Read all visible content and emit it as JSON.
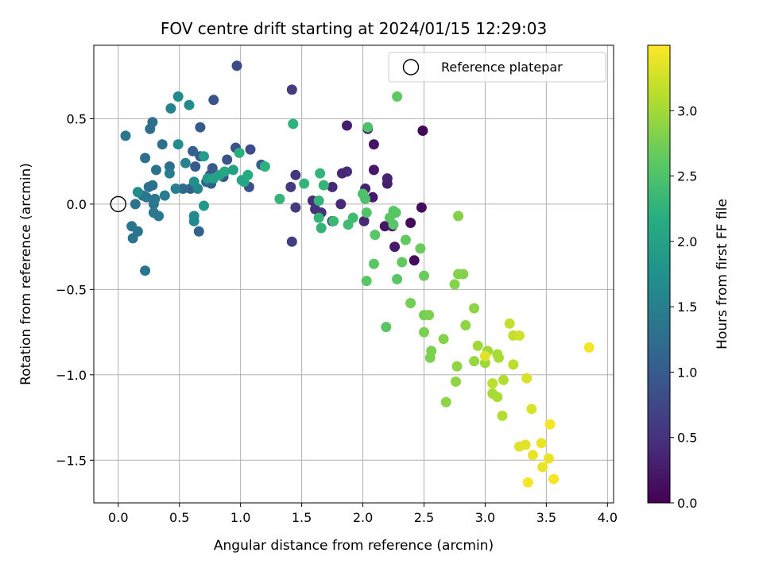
{
  "chart_data": {
    "type": "scatter",
    "title": "FOV centre drift starting at 2024/01/15 12:29:03",
    "xlabel": "Angular distance from reference (arcmin)",
    "ylabel": "Rotation from reference (arcmin)",
    "xlim": [
      -0.2,
      4.05
    ],
    "ylim": [
      -1.75,
      0.93
    ],
    "xticks": [
      0.0,
      0.5,
      1.0,
      1.5,
      2.0,
      2.5,
      3.0,
      3.5,
      4.0
    ],
    "xtick_labels": [
      "0.0",
      "0.5",
      "1.0",
      "1.5",
      "2.0",
      "2.5",
      "3.0",
      "3.5",
      "4.0"
    ],
    "yticks": [
      0.5,
      0.0,
      -0.5,
      -1.0,
      -1.5
    ],
    "ytick_labels": [
      "0.5",
      "0.0",
      "−0.5",
      "−1.0",
      "−1.5"
    ],
    "grid": true,
    "legend": {
      "placement": "top-right",
      "label": "Reference platepar"
    },
    "reference_point": {
      "x": 0.0,
      "y": 0.0
    },
    "colorbar": {
      "label": "Hours from first FF file",
      "colormap": "viridis",
      "range": [
        0.0,
        3.5
      ],
      "ticks": [
        0.0,
        0.5,
        1.0,
        1.5,
        2.0,
        2.5,
        3.0
      ],
      "tick_labels": [
        "0.0",
        "0.5",
        "1.0",
        "1.5",
        "2.0",
        "2.5",
        "3.0"
      ]
    },
    "series": [
      {
        "color_by": "hours",
        "points": [
          {
            "x": 2.49,
            "y": 0.43,
            "c": 0.05
          },
          {
            "x": 2.48,
            "y": -0.02,
            "c": 0.1
          },
          {
            "x": 2.42,
            "y": -0.33,
            "c": 0.1
          },
          {
            "x": 2.39,
            "y": -0.11,
            "c": 0.1
          },
          {
            "x": 2.26,
            "y": -0.25,
            "c": 0.25
          },
          {
            "x": 2.24,
            "y": -0.13,
            "c": 0.15
          },
          {
            "x": 2.2,
            "y": 0.12,
            "c": 0.3
          },
          {
            "x": 2.2,
            "y": 0.15,
            "c": 0.35
          },
          {
            "x": 2.18,
            "y": -0.13,
            "c": 0.2
          },
          {
            "x": 2.09,
            "y": 0.35,
            "c": 0.2
          },
          {
            "x": 2.09,
            "y": 0.2,
            "c": 0.25
          },
          {
            "x": 2.08,
            "y": 0.04,
            "c": 0.25
          },
          {
            "x": 2.04,
            "y": 0.44,
            "c": 0.25
          },
          {
            "x": 2.02,
            "y": 0.09,
            "c": 0.35
          },
          {
            "x": 2.01,
            "y": -0.1,
            "c": 0.4
          },
          {
            "x": 1.87,
            "y": 0.46,
            "c": 0.3
          },
          {
            "x": 1.87,
            "y": 0.19,
            "c": 0.45
          },
          {
            "x": 1.83,
            "y": 0.18,
            "c": 0.4
          },
          {
            "x": 1.82,
            "y": 0.0,
            "c": 0.4
          },
          {
            "x": 1.75,
            "y": 0.1,
            "c": 0.4
          },
          {
            "x": 1.75,
            "y": -0.1,
            "c": 0.4
          },
          {
            "x": 1.66,
            "y": -0.05,
            "c": 0.5
          },
          {
            "x": 1.61,
            "y": -0.03,
            "c": 0.5
          },
          {
            "x": 1.59,
            "y": 0.02,
            "c": 0.45
          },
          {
            "x": 1.45,
            "y": 0.17,
            "c": 0.55
          },
          {
            "x": 1.42,
            "y": 0.67,
            "c": 0.6
          },
          {
            "x": 1.41,
            "y": 0.1,
            "c": 0.6
          },
          {
            "x": 1.45,
            "y": -0.02,
            "c": 0.6
          },
          {
            "x": 1.42,
            "y": -0.22,
            "c": 0.65
          },
          {
            "x": 0.97,
            "y": 0.81,
            "c": 0.8
          },
          {
            "x": 1.08,
            "y": 0.32,
            "c": 0.8
          },
          {
            "x": 1.07,
            "y": 0.1,
            "c": 0.85
          },
          {
            "x": 0.96,
            "y": 0.33,
            "c": 0.9
          },
          {
            "x": 0.89,
            "y": 0.26,
            "c": 0.9
          },
          {
            "x": 0.86,
            "y": 0.16,
            "c": 0.9
          },
          {
            "x": 0.78,
            "y": 0.61,
            "c": 0.9
          },
          {
            "x": 0.67,
            "y": 0.45,
            "c": 1.0
          },
          {
            "x": 0.63,
            "y": 0.22,
            "c": 1.0
          },
          {
            "x": 0.67,
            "y": 0.28,
            "c": 1.0
          },
          {
            "x": 0.75,
            "y": 0.17,
            "c": 1.0
          },
          {
            "x": 0.77,
            "y": 0.21,
            "c": 1.0
          },
          {
            "x": 0.66,
            "y": -0.16,
            "c": 1.1
          },
          {
            "x": 0.72,
            "y": 0.13,
            "c": 1.1
          },
          {
            "x": 0.76,
            "y": 0.12,
            "c": 1.1
          },
          {
            "x": 0.59,
            "y": 0.09,
            "c": 1.1
          },
          {
            "x": 0.61,
            "y": 0.31,
            "c": 1.1
          },
          {
            "x": 1.17,
            "y": 0.23,
            "c": 1.1
          },
          {
            "x": 0.53,
            "y": 0.09,
            "c": 1.2
          },
          {
            "x": 0.28,
            "y": 0.48,
            "c": 1.3
          },
          {
            "x": 0.26,
            "y": 0.44,
            "c": 1.3
          },
          {
            "x": 0.22,
            "y": 0.27,
            "c": 1.3
          },
          {
            "x": 0.28,
            "y": 0.11,
            "c": 1.3
          },
          {
            "x": 0.25,
            "y": 0.1,
            "c": 1.3
          },
          {
            "x": 0.42,
            "y": 0.22,
            "c": 1.3
          },
          {
            "x": 0.36,
            "y": 0.35,
            "c": 1.3
          },
          {
            "x": 0.31,
            "y": 0.2,
            "c": 1.35
          },
          {
            "x": 0.14,
            "y": 0.0,
            "c": 1.35
          },
          {
            "x": 0.11,
            "y": -0.13,
            "c": 1.35
          },
          {
            "x": 0.16,
            "y": -0.16,
            "c": 1.35
          },
          {
            "x": 0.12,
            "y": -0.2,
            "c": 1.35
          },
          {
            "x": 0.22,
            "y": -0.39,
            "c": 1.35
          },
          {
            "x": 0.06,
            "y": 0.4,
            "c": 1.4
          },
          {
            "x": 0.2,
            "y": 0.05,
            "c": 1.4
          },
          {
            "x": 0.23,
            "y": 0.04,
            "c": 1.4
          },
          {
            "x": 0.3,
            "y": 0.03,
            "c": 1.4
          },
          {
            "x": 0.29,
            "y": 0.0,
            "c": 1.4
          },
          {
            "x": 0.29,
            "y": -0.05,
            "c": 1.4
          },
          {
            "x": 0.33,
            "y": -0.07,
            "c": 1.4
          },
          {
            "x": 0.38,
            "y": 0.05,
            "c": 1.45
          },
          {
            "x": 0.42,
            "y": 0.18,
            "c": 1.5
          },
          {
            "x": 0.47,
            "y": 0.09,
            "c": 1.5
          },
          {
            "x": 0.43,
            "y": 0.56,
            "c": 1.55
          },
          {
            "x": 0.55,
            "y": 0.24,
            "c": 1.55
          },
          {
            "x": 0.65,
            "y": 0.09,
            "c": 1.6
          },
          {
            "x": 0.62,
            "y": -0.07,
            "c": 1.65
          },
          {
            "x": 0.62,
            "y": -0.1,
            "c": 1.65
          },
          {
            "x": 0.49,
            "y": 0.63,
            "c": 1.7
          },
          {
            "x": 0.58,
            "y": 0.58,
            "c": 1.7
          },
          {
            "x": 0.49,
            "y": 0.35,
            "c": 1.7
          },
          {
            "x": 0.16,
            "y": 0.07,
            "c": 1.7
          },
          {
            "x": 0.62,
            "y": 0.13,
            "c": 1.75
          },
          {
            "x": 0.7,
            "y": -0.01,
            "c": 1.9
          },
          {
            "x": 0.73,
            "y": 0.15,
            "c": 1.9
          },
          {
            "x": 0.7,
            "y": 0.28,
            "c": 1.95
          },
          {
            "x": 0.78,
            "y": 0.15,
            "c": 2.0
          },
          {
            "x": 0.83,
            "y": 0.17,
            "c": 2.0
          },
          {
            "x": 0.87,
            "y": 0.19,
            "c": 2.1
          },
          {
            "x": 0.94,
            "y": 0.2,
            "c": 2.0
          },
          {
            "x": 1.01,
            "y": 0.14,
            "c": 2.1
          },
          {
            "x": 1.03,
            "y": 0.13,
            "c": 2.1
          },
          {
            "x": 1.06,
            "y": 0.17,
            "c": 2.15
          },
          {
            "x": 0.99,
            "y": 0.3,
            "c": 2.2
          },
          {
            "x": 1.2,
            "y": 0.22,
            "c": 2.25
          },
          {
            "x": 1.32,
            "y": 0.03,
            "c": 2.3
          },
          {
            "x": 1.43,
            "y": 0.47,
            "c": 2.25
          },
          {
            "x": 1.52,
            "y": 0.12,
            "c": 2.3
          },
          {
            "x": 1.65,
            "y": 0.18,
            "c": 2.3
          },
          {
            "x": 1.68,
            "y": 0.11,
            "c": 2.3
          },
          {
            "x": 1.64,
            "y": 0.02,
            "c": 2.3
          },
          {
            "x": 1.64,
            "y": -0.08,
            "c": 2.3
          },
          {
            "x": 1.66,
            "y": -0.14,
            "c": 2.3
          },
          {
            "x": 1.76,
            "y": -0.1,
            "c": 2.35
          },
          {
            "x": 1.88,
            "y": -0.12,
            "c": 2.4
          },
          {
            "x": 1.92,
            "y": -0.08,
            "c": 2.4
          },
          {
            "x": 2.0,
            "y": 0.06,
            "c": 2.5
          },
          {
            "x": 2.02,
            "y": 0.03,
            "c": 2.5
          },
          {
            "x": 2.03,
            "y": -0.05,
            "c": 2.55
          },
          {
            "x": 2.04,
            "y": 0.45,
            "c": 2.5
          },
          {
            "x": 2.03,
            "y": -0.45,
            "c": 2.6
          },
          {
            "x": 2.09,
            "y": -0.35,
            "c": 2.6
          },
          {
            "x": 2.1,
            "y": -0.18,
            "c": 2.6
          },
          {
            "x": 2.19,
            "y": -0.72,
            "c": 2.6
          },
          {
            "x": 2.22,
            "y": -0.08,
            "c": 2.6
          },
          {
            "x": 2.25,
            "y": -0.04,
            "c": 2.6
          },
          {
            "x": 2.25,
            "y": -0.12,
            "c": 2.6
          },
          {
            "x": 2.27,
            "y": -0.05,
            "c": 2.6
          },
          {
            "x": 2.28,
            "y": -0.44,
            "c": 2.6
          },
          {
            "x": 2.28,
            "y": 0.63,
            "c": 2.65
          },
          {
            "x": 2.32,
            "y": -0.34,
            "c": 2.65
          },
          {
            "x": 2.35,
            "y": -0.21,
            "c": 2.65
          },
          {
            "x": 2.47,
            "y": -0.26,
            "c": 2.7
          },
          {
            "x": 2.5,
            "y": -0.42,
            "c": 2.7
          },
          {
            "x": 2.39,
            "y": -0.58,
            "c": 2.75
          },
          {
            "x": 2.5,
            "y": -0.65,
            "c": 2.75
          },
          {
            "x": 2.54,
            "y": -0.65,
            "c": 2.8
          },
          {
            "x": 2.5,
            "y": -0.75,
            "c": 2.8
          },
          {
            "x": 2.56,
            "y": -0.86,
            "c": 2.8
          },
          {
            "x": 2.55,
            "y": -0.9,
            "c": 2.8
          },
          {
            "x": 2.66,
            "y": -0.79,
            "c": 2.85
          },
          {
            "x": 2.75,
            "y": -0.47,
            "c": 2.85
          },
          {
            "x": 2.78,
            "y": -0.41,
            "c": 2.85
          },
          {
            "x": 2.82,
            "y": -0.41,
            "c": 2.85
          },
          {
            "x": 2.78,
            "y": -0.07,
            "c": 2.85
          },
          {
            "x": 2.77,
            "y": -0.95,
            "c": 2.9
          },
          {
            "x": 2.76,
            "y": -1.04,
            "c": 2.9
          },
          {
            "x": 2.68,
            "y": -1.16,
            "c": 2.9
          },
          {
            "x": 2.84,
            "y": -0.71,
            "c": 2.9
          },
          {
            "x": 2.91,
            "y": -0.61,
            "c": 2.9
          },
          {
            "x": 2.91,
            "y": -0.92,
            "c": 2.95
          },
          {
            "x": 2.94,
            "y": -0.83,
            "c": 3.0
          },
          {
            "x": 3.0,
            "y": -0.93,
            "c": 3.0
          },
          {
            "x": 3.02,
            "y": -0.86,
            "c": 3.0
          },
          {
            "x": 3.1,
            "y": -0.88,
            "c": 3.05
          },
          {
            "x": 3.11,
            "y": -0.9,
            "c": 3.05
          },
          {
            "x": 3.06,
            "y": -1.11,
            "c": 3.05
          },
          {
            "x": 3.1,
            "y": -1.13,
            "c": 3.05
          },
          {
            "x": 3.15,
            "y": -1.03,
            "c": 3.1
          },
          {
            "x": 3.14,
            "y": -1.24,
            "c": 3.1
          },
          {
            "x": 3.06,
            "y": -1.05,
            "c": 3.15
          },
          {
            "x": 3.23,
            "y": -0.94,
            "c": 3.15
          },
          {
            "x": 3.2,
            "y": -0.7,
            "c": 3.2
          },
          {
            "x": 3.23,
            "y": -0.77,
            "c": 3.2
          },
          {
            "x": 3.28,
            "y": -0.77,
            "c": 3.25
          },
          {
            "x": 3.34,
            "y": -1.02,
            "c": 3.3
          },
          {
            "x": 3.38,
            "y": -1.2,
            "c": 3.3
          },
          {
            "x": 3.0,
            "y": -0.89,
            "c": 3.35
          },
          {
            "x": 3.28,
            "y": -1.42,
            "c": 3.35
          },
          {
            "x": 3.33,
            "y": -1.41,
            "c": 3.35
          },
          {
            "x": 3.39,
            "y": -1.47,
            "c": 3.4
          },
          {
            "x": 3.46,
            "y": -1.4,
            "c": 3.4
          },
          {
            "x": 3.47,
            "y": -1.54,
            "c": 3.4
          },
          {
            "x": 3.52,
            "y": -1.49,
            "c": 3.4
          },
          {
            "x": 3.53,
            "y": -1.29,
            "c": 3.45
          },
          {
            "x": 3.56,
            "y": -1.61,
            "c": 3.45
          },
          {
            "x": 3.35,
            "y": -1.63,
            "c": 3.45
          },
          {
            "x": 3.85,
            "y": -0.84,
            "c": 3.45
          }
        ]
      }
    ]
  }
}
